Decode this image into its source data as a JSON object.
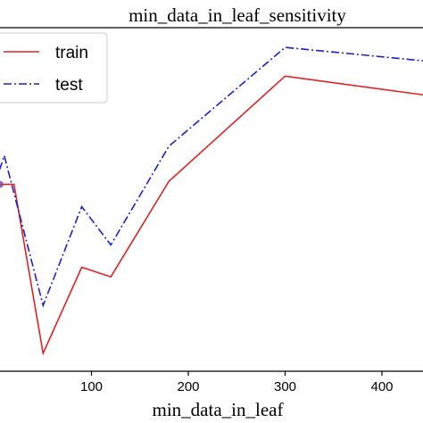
{
  "chart_data": {
    "type": "line",
    "title": "min_data_in_leaf_sensitivity",
    "xlabel": "min_data_in_leaf",
    "ylabel": "",
    "x_ticks": [
      100,
      200,
      300,
      400
    ],
    "xlim": [
      0,
      470
    ],
    "ylim": [
      0,
      1
    ],
    "legend_position": "top-left",
    "grid": false,
    "series": [
      {
        "name": "train",
        "color": "#dd2222",
        "style": "solid",
        "x": [
          0,
          20,
          50,
          90,
          120,
          180,
          300,
          470
        ],
        "y": [
          0.55,
          0.55,
          0.02,
          0.29,
          0.26,
          0.56,
          0.89,
          0.82
        ]
      },
      {
        "name": "test",
        "color": "#1f1fcc",
        "style": "dashdot",
        "x": [
          0,
          10,
          50,
          90,
          120,
          180,
          300,
          470
        ],
        "y": [
          0.55,
          0.64,
          0.17,
          0.48,
          0.36,
          0.67,
          0.98,
          0.93
        ]
      }
    ]
  }
}
